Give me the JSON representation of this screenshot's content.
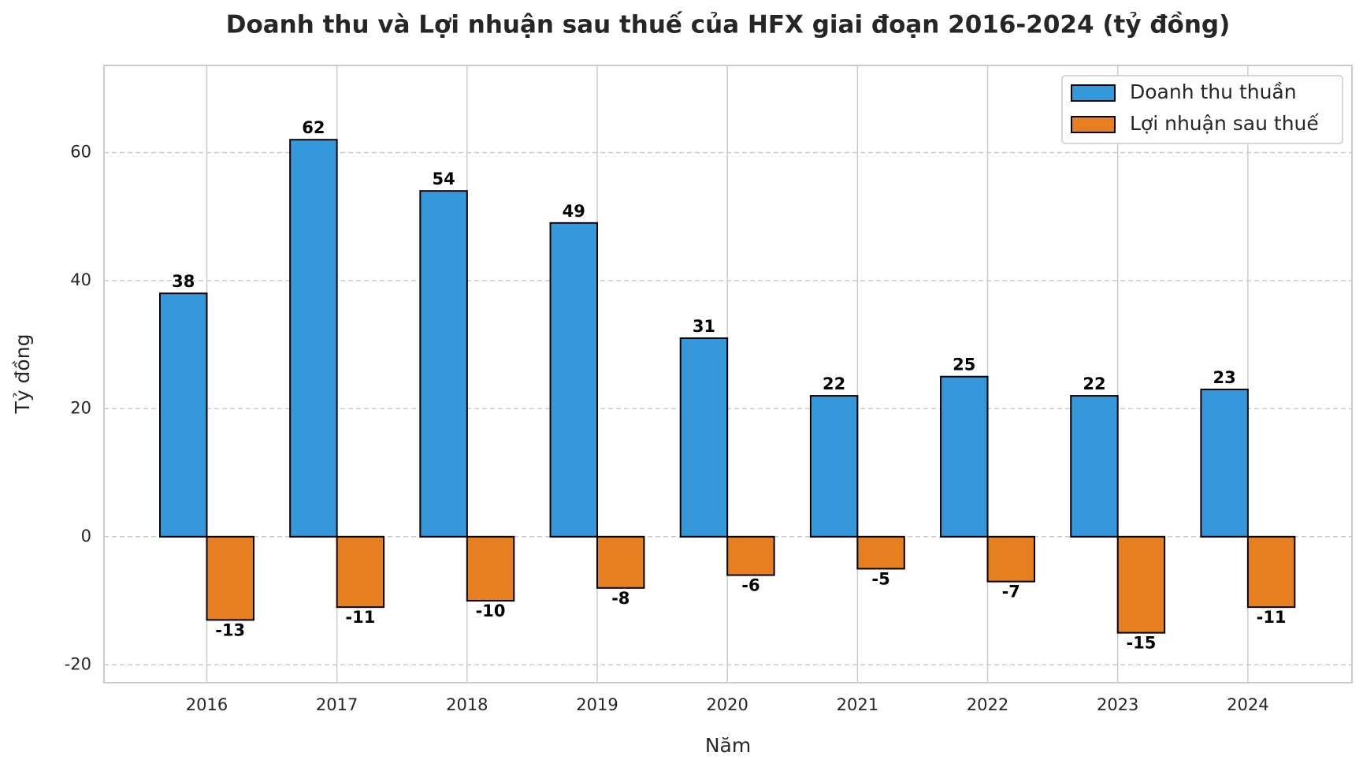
{
  "chart_data": {
    "type": "bar",
    "title": "Doanh thu và Lợi nhuận sau thuế của HFX giai đoạn 2016-2024 (tỷ đồng)",
    "x_label": "Năm",
    "y_label": "Tỷ đồng",
    "categories": [
      "2016",
      "2017",
      "2018",
      "2019",
      "2020",
      "2021",
      "2022",
      "2023",
      "2024"
    ],
    "series": [
      {
        "name": "Doanh thu thuần",
        "color": "#3498db",
        "values": [
          38,
          62,
          54,
          49,
          31,
          22,
          25,
          22,
          23
        ]
      },
      {
        "name": "Lợi nhuận sau thuế",
        "color": "#e67e22",
        "values": [
          -13,
          -11,
          -10,
          -8,
          -6,
          -5,
          -7,
          -15,
          -11
        ]
      }
    ],
    "ylim": [
      -22.8,
      73.6
    ],
    "yticks": [
      -20,
      0,
      20,
      40,
      60
    ],
    "grid": true,
    "legend": "upper right"
  }
}
